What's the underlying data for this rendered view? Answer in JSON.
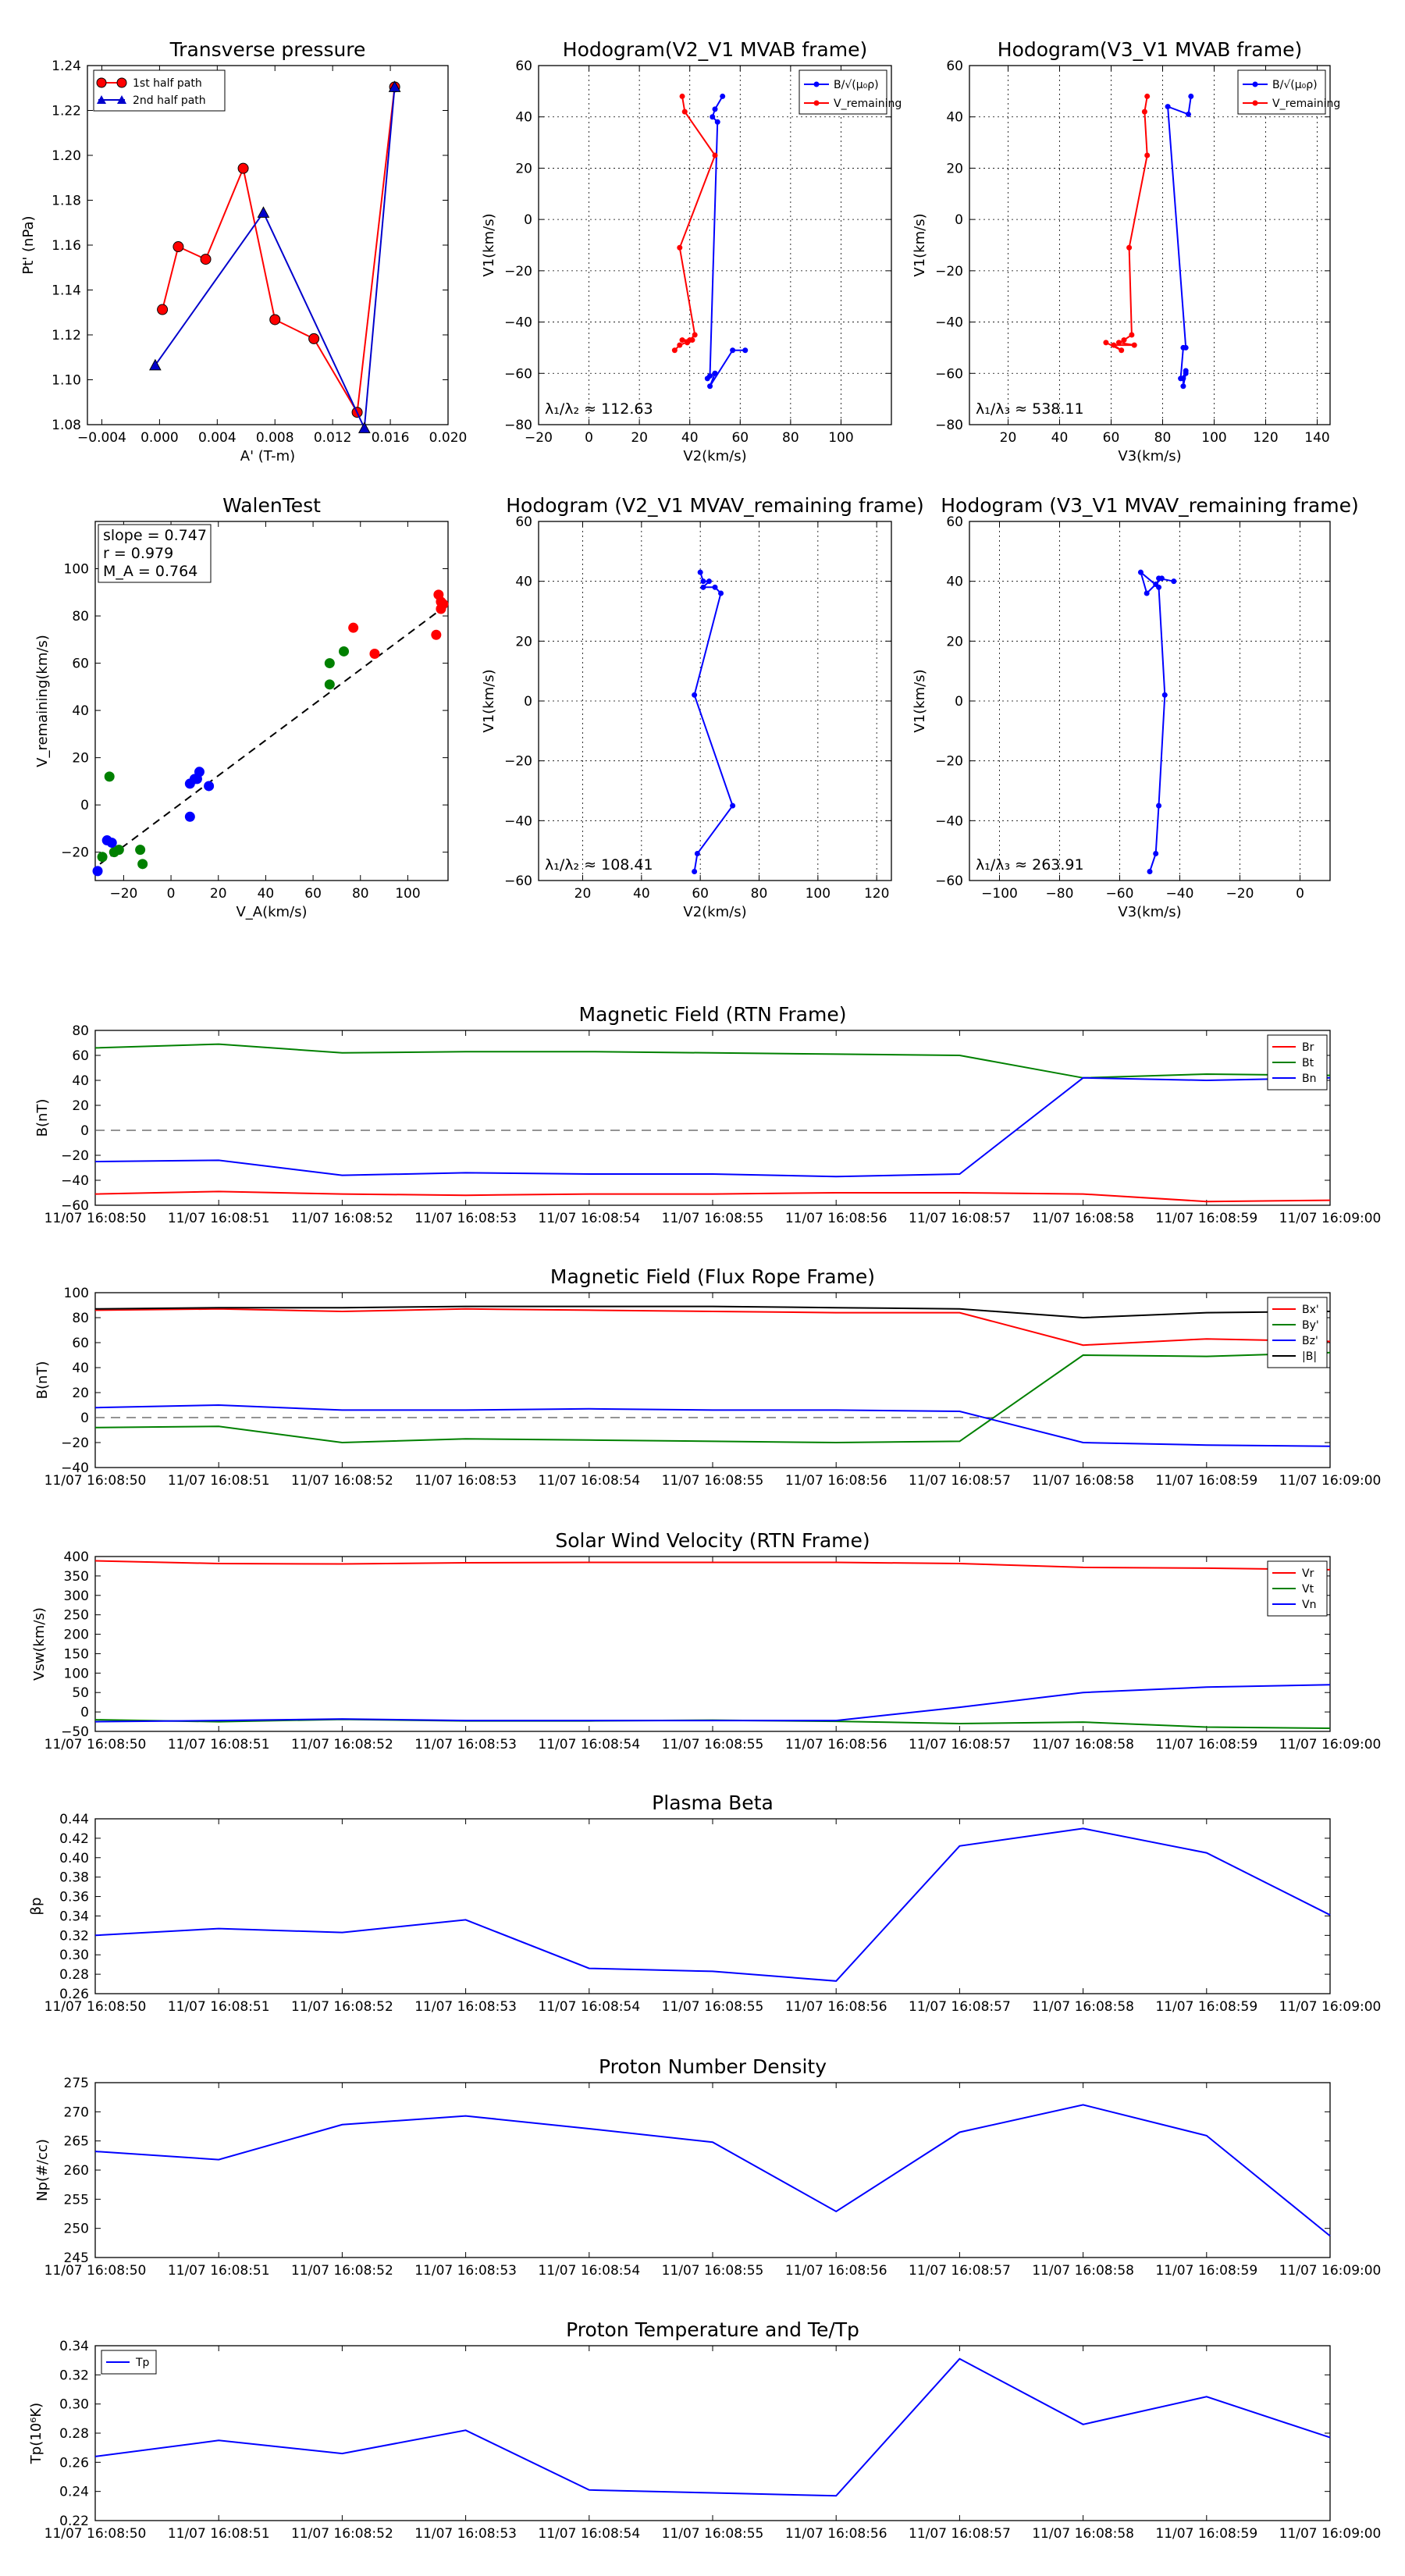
{
  "figure": {
    "background": "#ffffff"
  },
  "chart_data": [
    {
      "id": "tp",
      "type": "line",
      "title": "Transverse pressure",
      "xlabel": "A' (T-m)",
      "ylabel": "Pt' (nPa)",
      "xlim": [
        -0.005,
        0.02
      ],
      "ylim": [
        1.08,
        1.24
      ],
      "xticks": [
        -0.004,
        0,
        0.004,
        0.008,
        0.012,
        0.016,
        0.02
      ],
      "xticklabels": [
        "−0.004",
        "0.000",
        "0.004",
        "0.008",
        "0.012",
        "0.016",
        "0.020"
      ],
      "yticks": [
        1.08,
        1.1,
        1.12,
        1.14,
        1.16,
        1.18,
        1.2,
        1.22,
        1.24
      ],
      "yticklabels": [
        "1.08",
        "1.10",
        "1.12",
        "1.14",
        "1.16",
        "1.18",
        "1.20",
        "1.22",
        "1.24"
      ],
      "grid": false,
      "legend_loc": "upper left",
      "series": [
        {
          "name": "1st half path",
          "color": "#ff0000",
          "marker": "circle",
          "x": [
            0.0163,
            0.0137,
            0.0107,
            0.008,
            0.0058,
            0.0032,
            0.0013,
            0.0002
          ],
          "y": [
            1.2305,
            1.0855,
            1.1183,
            1.1268,
            1.1942,
            1.1537,
            1.1593,
            1.1313
          ]
        },
        {
          "name": "2nd half path",
          "color": "#0000cc",
          "marker": "triangle",
          "x": [
            -0.0003,
            0.0072,
            0.0142,
            0.0163
          ],
          "y": [
            1.1065,
            1.1745,
            1.0785,
            1.2305
          ]
        }
      ]
    },
    {
      "id": "h1",
      "type": "line",
      "title": "Hodogram(V2_V1 MVAB frame)",
      "xlabel": "V2(km/s)",
      "ylabel": "V1(km/s)",
      "xlim": [
        -20,
        120
      ],
      "ylim": [
        -80,
        60
      ],
      "xticks": [
        -20,
        0,
        20,
        40,
        60,
        80,
        100
      ],
      "yticks": [
        -80,
        -60,
        -40,
        -20,
        0,
        20,
        40,
        60
      ],
      "grid": true,
      "legend_loc": "upper right",
      "annotation": "λ₁/λ₂ ≈ 112.63",
      "series": [
        {
          "name": "B/√(μ₀ρ)",
          "color": "#0000ff",
          "marker": "dot",
          "x": [
            53,
            50,
            49,
            51,
            48,
            47,
            50,
            48,
            57,
            62
          ],
          "y": [
            48,
            43,
            40,
            38,
            -61,
            -62,
            -60,
            -65,
            -51,
            -51
          ]
        },
        {
          "name": "V_remaining",
          "color": "#ff0000",
          "marker": "dot",
          "x": [
            37,
            38,
            50,
            36,
            42,
            40,
            37,
            39,
            41,
            36,
            34
          ],
          "y": [
            48,
            42,
            25,
            -11,
            -45,
            -47,
            -47,
            -48,
            -47,
            -49,
            -51
          ]
        }
      ]
    },
    {
      "id": "h2",
      "type": "line",
      "title": "Hodogram(V3_V1 MVAB frame)",
      "xlabel": "V3(km/s)",
      "ylabel": "V1(km/s)",
      "xlim": [
        5,
        145
      ],
      "ylim": [
        -80,
        60
      ],
      "xticks": [
        20,
        40,
        60,
        80,
        100,
        120,
        140
      ],
      "yticks": [
        -80,
        -60,
        -40,
        -20,
        0,
        20,
        40,
        60
      ],
      "grid": true,
      "legend_loc": "upper right",
      "annotation": "λ₁/λ₃ ≈ 538.11",
      "series": [
        {
          "name": "B/√(μ₀ρ)",
          "color": "#0000ff",
          "marker": "dot",
          "x": [
            91,
            90,
            82,
            89,
            88,
            87,
            89,
            88,
            88,
            89
          ],
          "y": [
            48,
            41,
            44,
            -50,
            -50,
            -62,
            -60,
            -65,
            -62,
            -59
          ]
        },
        {
          "name": "V_remaining",
          "color": "#ff0000",
          "marker": "dot",
          "x": [
            74,
            73,
            74,
            67,
            68,
            65,
            63,
            69,
            61,
            64,
            58
          ],
          "y": [
            48,
            42,
            25,
            -11,
            -45,
            -47,
            -48,
            -49,
            -49,
            -51,
            -48
          ]
        }
      ]
    },
    {
      "id": "walen",
      "type": "scatter",
      "title": "WalenTest",
      "xlabel": "V_A(km/s)",
      "ylabel": "V_remaining(km/s)",
      "xlim": [
        -32,
        117
      ],
      "ylim": [
        -32,
        120
      ],
      "xticks": [
        -20,
        0,
        20,
        40,
        60,
        80,
        100
      ],
      "yticks": [
        -20,
        0,
        20,
        40,
        60,
        80,
        100
      ],
      "grid": false,
      "annotations": [
        "slope = 0.747",
        "r = 0.979",
        "M_A = 0.764"
      ],
      "fit_line": {
        "x": [
          -30,
          117
        ],
        "y": [
          -25,
          85
        ]
      },
      "series": [
        {
          "name": "red",
          "color": "#ff0000",
          "x": [
            77,
            86,
            112,
            113,
            114,
            115,
            114
          ],
          "y": [
            75,
            64,
            72,
            89,
            86,
            85,
            83
          ]
        },
        {
          "name": "green",
          "color": "#008000",
          "x": [
            -26,
            -29,
            -24,
            -22,
            -13,
            -12,
            67,
            67,
            73
          ],
          "y": [
            12,
            -22,
            -20,
            -19,
            -19,
            -25,
            51,
            60,
            65
          ]
        },
        {
          "name": "blue",
          "color": "#0000ff",
          "x": [
            -27,
            -25,
            -31,
            8,
            8,
            10,
            11,
            12,
            16
          ],
          "y": [
            -15,
            -16,
            -28,
            -5,
            9,
            11,
            11,
            14,
            8
          ]
        }
      ]
    },
    {
      "id": "h3",
      "type": "line",
      "title": "Hodogram (V2_V1 MVAV_remaining frame)",
      "xlabel": "V2(km/s)",
      "ylabel": "V1(km/s)",
      "xlim": [
        5,
        125
      ],
      "ylim": [
        -60,
        60
      ],
      "xticks": [
        20,
        40,
        60,
        80,
        100,
        120
      ],
      "yticks": [
        -60,
        -40,
        -20,
        0,
        20,
        40,
        60
      ],
      "grid": true,
      "annotation": "λ₁/λ₂ ≈ 108.41",
      "series": [
        {
          "name": "blue",
          "color": "#0000ff",
          "marker": "dot",
          "x": [
            60,
            61,
            63,
            61,
            65,
            67,
            58,
            71,
            59,
            58
          ],
          "y": [
            43,
            40,
            40,
            38,
            38,
            36,
            2,
            -35,
            -51,
            -57
          ]
        }
      ]
    },
    {
      "id": "h4",
      "type": "line",
      "title": "Hodogram (V3_V1 MVAV_remaining frame)",
      "xlabel": "V3(km/s)",
      "ylabel": "V1(km/s)",
      "xlim": [
        -110,
        10
      ],
      "ylim": [
        -60,
        60
      ],
      "xticks": [
        -100,
        -80,
        -60,
        -40,
        -20,
        0
      ],
      "yticks": [
        -60,
        -40,
        -20,
        0,
        20,
        40,
        60
      ],
      "grid": true,
      "annotation": "λ₁/λ₃ ≈ 263.91",
      "series": [
        {
          "name": "blue",
          "color": "#0000ff",
          "marker": "dot",
          "x": [
            -42,
            -47,
            -46,
            -48,
            -51,
            -53,
            -47,
            -45,
            -47,
            -48,
            -50
          ],
          "y": [
            40,
            41,
            41,
            39,
            36,
            43,
            38,
            2,
            -35,
            -51,
            -57
          ]
        }
      ]
    },
    {
      "id": "bfield",
      "type": "line",
      "title": "Magnetic Field (RTN Frame)",
      "ylabel": "B(nT)",
      "ylim": [
        -60,
        80
      ],
      "yticks": [
        -60,
        -40,
        -20,
        0,
        20,
        40,
        60,
        80
      ],
      "zero_line": true,
      "legend_loc": "upper right",
      "series": [
        {
          "name": "Br",
          "color": "#ff0000",
          "values": [
            -51,
            -49,
            -51,
            -52,
            -51,
            -51,
            -50,
            -50,
            -51,
            -57,
            -56
          ]
        },
        {
          "name": "Bt",
          "color": "#008000",
          "values": [
            66,
            69,
            62,
            63,
            63,
            62,
            61,
            60,
            42,
            45,
            44
          ]
        },
        {
          "name": "Bn",
          "color": "#0000ff",
          "values": [
            -25,
            -24,
            -36,
            -34,
            -35,
            -35,
            -37,
            -35,
            42,
            40,
            42
          ]
        }
      ]
    },
    {
      "id": "bfr",
      "type": "line",
      "title": "Magnetic Field (Flux Rope Frame)",
      "ylabel": "B(nT)",
      "ylim": [
        -40,
        100
      ],
      "yticks": [
        -40,
        -20,
        0,
        20,
        40,
        60,
        80,
        100
      ],
      "zero_line": true,
      "legend_loc": "upper right",
      "series": [
        {
          "name": "Bx'",
          "color": "#ff0000",
          "values": [
            86,
            87,
            85,
            87,
            86,
            85,
            84,
            84,
            58,
            63,
            61
          ]
        },
        {
          "name": "By'",
          "color": "#008000",
          "values": [
            -8,
            -7,
            -20,
            -17,
            -18,
            -19,
            -20,
            -19,
            50,
            49,
            52
          ]
        },
        {
          "name": "Bz'",
          "color": "#0000ff",
          "values": [
            8,
            10,
            6,
            6,
            7,
            6,
            6,
            5,
            -20,
            -22,
            -23
          ]
        },
        {
          "name": "|B|",
          "color": "#000000",
          "values": [
            87,
            88,
            88,
            89,
            89,
            89,
            88,
            87,
            80,
            84,
            85
          ]
        }
      ]
    },
    {
      "id": "vsw",
      "type": "line",
      "title": "Solar Wind Velocity (RTN Frame)",
      "ylabel": "Vsw(km/s)",
      "ylim": [
        -50,
        400
      ],
      "yticks": [
        -50,
        0,
        50,
        100,
        150,
        200,
        250,
        300,
        350,
        400
      ],
      "legend_loc": "upper right",
      "series": [
        {
          "name": "Vr",
          "color": "#ff0000",
          "values": [
            389,
            382,
            381,
            384,
            385,
            385,
            385,
            382,
            372,
            370,
            366
          ]
        },
        {
          "name": "Vt",
          "color": "#008000",
          "values": [
            -20,
            -25,
            -19,
            -23,
            -23,
            -21,
            -24,
            -30,
            -26,
            -39,
            -42
          ]
        },
        {
          "name": "Vn",
          "color": "#0000ff",
          "values": [
            -25,
            -22,
            -18,
            -22,
            -22,
            -22,
            -22,
            12,
            50,
            64,
            70
          ]
        }
      ]
    },
    {
      "id": "beta",
      "type": "line",
      "title": "Plasma Beta",
      "ylabel": "βp",
      "ylim": [
        0.26,
        0.44
      ],
      "yticks": [
        0.26,
        0.28,
        0.3,
        0.32,
        0.34,
        0.36,
        0.38,
        0.4,
        0.42,
        0.44
      ],
      "yticklabels": [
        "0.26",
        "0.28",
        "0.30",
        "0.32",
        "0.34",
        "0.36",
        "0.38",
        "0.40",
        "0.42",
        "0.44"
      ],
      "series": [
        {
          "name": "beta",
          "color": "#0000ff",
          "values": [
            0.32,
            0.327,
            0.323,
            0.336,
            0.286,
            0.283,
            0.273,
            0.412,
            0.43,
            0.405,
            0.341
          ]
        }
      ]
    },
    {
      "id": "np",
      "type": "line",
      "title": "Proton Number Density",
      "ylabel": "Np(#/cc)",
      "ylim": [
        245,
        275
      ],
      "yticks": [
        245,
        250,
        255,
        260,
        265,
        270,
        275
      ],
      "series": [
        {
          "name": "Np",
          "color": "#0000ff",
          "values": [
            263.2,
            261.8,
            267.8,
            269.3,
            267.1,
            264.8,
            252.9,
            266.5,
            271.2,
            265.9,
            248.7
          ]
        }
      ]
    },
    {
      "id": "tp2",
      "type": "line",
      "title": "Proton Temperature and Te/Tp",
      "ylabel": "Tp(10⁶K)",
      "ylim": [
        0.22,
        0.34
      ],
      "yticks": [
        0.22,
        0.24,
        0.26,
        0.28,
        0.3,
        0.32,
        0.34
      ],
      "yticklabels": [
        "0.22",
        "0.24",
        "0.26",
        "0.28",
        "0.30",
        "0.32",
        "0.34"
      ],
      "legend_loc": "upper left",
      "series": [
        {
          "name": "Tp",
          "color": "#0000ff",
          "values": [
            0.264,
            0.275,
            0.266,
            0.282,
            0.241,
            0.239,
            0.237,
            0.331,
            0.286,
            0.305,
            0.277
          ]
        }
      ]
    }
  ],
  "time_axis": {
    "labels": [
      "11/07 16:08:50",
      "11/07 16:08:51",
      "11/07 16:08:52",
      "11/07 16:08:53",
      "11/07 16:08:54",
      "11/07 16:08:55",
      "11/07 16:08:56",
      "11/07 16:08:57",
      "11/07 16:08:58",
      "11/07 16:08:59",
      "11/07 16:09:00"
    ]
  }
}
